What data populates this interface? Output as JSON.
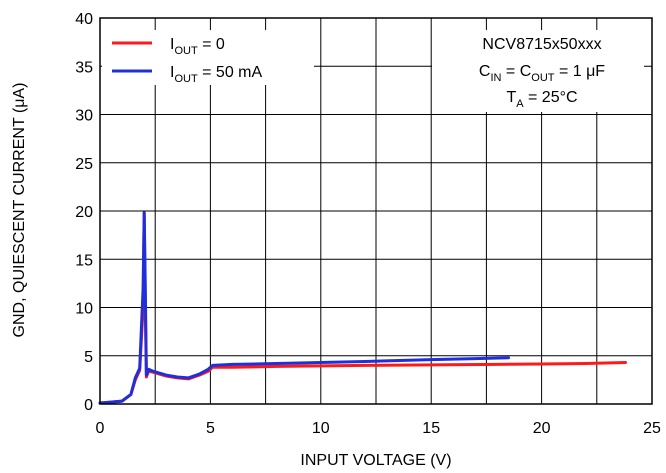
{
  "chart_data": {
    "type": "line",
    "xlabel": "INPUT VOLTAGE (V)",
    "ylabel": "GND, QUIESCENT CURRENT (μA)",
    "xlim": [
      0,
      25
    ],
    "ylim": [
      0,
      40
    ],
    "xticks": [
      "0",
      "5",
      "10",
      "15",
      "20",
      "25"
    ],
    "yticks": [
      "0",
      "5",
      "10",
      "15",
      "20",
      "25",
      "30",
      "35",
      "40"
    ],
    "grid": true,
    "legend_position": "top-left",
    "annotation": {
      "device": "NCV8715x50xxx",
      "cap_line": {
        "c": "C",
        "in": "IN",
        "eq1": " = C",
        "out": "OUT",
        "val": " = 1 μF"
      },
      "temp_line": {
        "t": "T",
        "a": "A",
        "val": " = 25°C"
      }
    },
    "series": [
      {
        "name": "I_OUT = 0",
        "legend": {
          "main": "I",
          "sub": "OUT",
          "rest": " = 0"
        },
        "color": "#ff1a1a",
        "x": [
          0,
          0.5,
          1.0,
          1.4,
          1.6,
          1.8,
          1.95,
          2.0,
          2.05,
          2.1,
          2.2,
          2.4,
          3.0,
          3.5,
          4.0,
          4.5,
          4.9,
          5.1,
          6,
          8,
          10,
          12,
          15,
          18,
          20,
          22,
          23.8
        ],
        "y": [
          0.1,
          0.2,
          0.3,
          1.0,
          2.5,
          3.5,
          10.0,
          19.8,
          10.0,
          2.8,
          3.4,
          3.3,
          2.9,
          2.7,
          2.6,
          3.0,
          3.4,
          3.8,
          3.8,
          3.9,
          3.95,
          4.0,
          4.05,
          4.1,
          4.15,
          4.2,
          4.3
        ]
      },
      {
        "name": "I_OUT = 50 mA",
        "legend": {
          "main": "I",
          "sub": "OUT",
          "rest": " = 50 mA"
        },
        "color": "#1f2fdc",
        "x": [
          0,
          0.5,
          1.0,
          1.4,
          1.6,
          1.8,
          1.95,
          2.0,
          2.05,
          2.1,
          2.2,
          2.4,
          3.0,
          3.5,
          4.0,
          4.5,
          4.9,
          5.1,
          6,
          8,
          10,
          12,
          15,
          17,
          18.5
        ],
        "y": [
          0.1,
          0.2,
          0.3,
          1.0,
          2.7,
          3.7,
          12.0,
          19.8,
          12.0,
          3.0,
          3.6,
          3.4,
          3.0,
          2.8,
          2.7,
          3.1,
          3.6,
          4.0,
          4.1,
          4.2,
          4.3,
          4.4,
          4.6,
          4.7,
          4.8
        ]
      }
    ]
  }
}
